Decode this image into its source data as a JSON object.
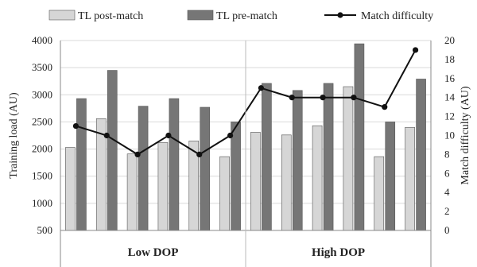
{
  "chart_data": {
    "type": "bar",
    "secondary_type": "line",
    "groups": [
      "Low DOP",
      "High DOP"
    ],
    "group_sizes": [
      6,
      6
    ],
    "series": [
      {
        "name": "TL post-match",
        "color": "#d6d6d6",
        "values": [
          2030,
          2560,
          1910,
          2120,
          2150,
          1860,
          2310,
          2260,
          2430,
          3150,
          1860,
          2400
        ]
      },
      {
        "name": "TL pre-match",
        "color": "#767676",
        "values": [
          2930,
          3450,
          2790,
          2930,
          2770,
          2500,
          3210,
          3080,
          3210,
          3940,
          2500,
          3290
        ]
      },
      {
        "name": "Match difficulty",
        "color": "#111111",
        "axis": "right",
        "values": [
          11,
          10,
          8,
          10,
          8,
          10,
          15,
          14,
          14,
          14,
          13,
          19
        ]
      }
    ],
    "ylabel": "Training load (AU)",
    "ylim": [
      500,
      4000
    ],
    "yticks": [
      "500",
      "1000",
      "1500",
      "2000",
      "2500",
      "3000",
      "3500",
      "4000"
    ],
    "y2label": "Match difficulty (AU)",
    "y2lim": [
      0,
      20
    ],
    "y2ticks": [
      "0",
      "2",
      "4",
      "6",
      "8",
      "10",
      "12",
      "14",
      "16",
      "18",
      "20"
    ],
    "grid": true,
    "legend_position": "top"
  }
}
